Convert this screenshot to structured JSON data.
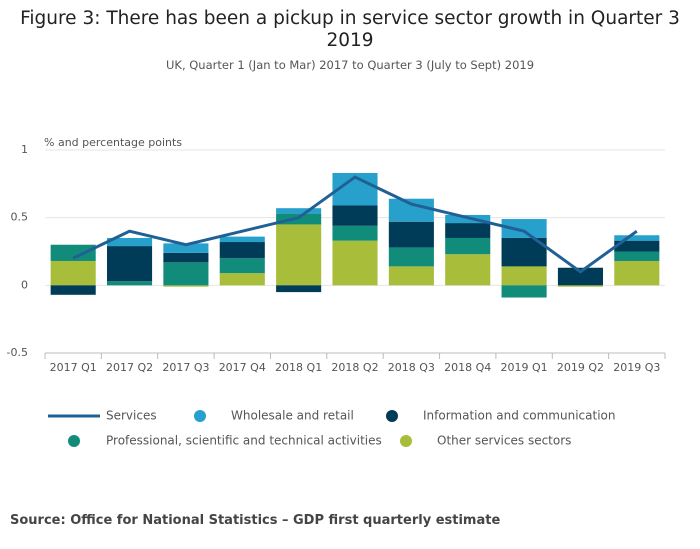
{
  "chart_data": {
    "type": "bar",
    "title": "Figure 3: There has been a pickup in service sector growth in Quarter 3 2019",
    "subtitle": "UK, Quarter 1 (Jan to Mar) 2017 to Quarter 3 (July to Sept) 2019",
    "y_label": "% and percentage points",
    "source": "Source: Office for National Statistics – GDP first quarterly estimate",
    "categories": [
      "2017 Q1",
      "2017 Q2",
      "2017 Q3",
      "2017 Q4",
      "2018 Q1",
      "2018 Q2",
      "2018 Q3",
      "2018 Q4",
      "2019 Q1",
      "2019 Q2",
      "2019 Q3"
    ],
    "ylim": [
      -0.5,
      1
    ],
    "yticks": [
      1,
      0.5,
      0,
      -0.5
    ],
    "grid": true,
    "stacked": true,
    "series": [
      {
        "name": "Services",
        "type": "line",
        "color": "#206095",
        "values": [
          0.2,
          0.4,
          0.3,
          0.4,
          0.5,
          0.8,
          0.6,
          0.5,
          0.4,
          0.1,
          0.4
        ]
      },
      {
        "name": "Wholesale and retail",
        "type": "bar",
        "color": "#27a0cc",
        "values": [
          0,
          0.06,
          0.07,
          0.04,
          0.04,
          0.24,
          0.17,
          0.06,
          0.14,
          0,
          0.04
        ]
      },
      {
        "name": "Information and communication",
        "type": "bar",
        "color": "#003c57",
        "values": [
          -0.07,
          0.26,
          0.07,
          0.12,
          -0.05,
          0.15,
          0.19,
          0.11,
          0.21,
          0.13,
          0.08
        ]
      },
      {
        "name": "Professional, scientific and technical activities",
        "type": "bar",
        "color": "#118c7b",
        "values": [
          0.12,
          0.03,
          0.17,
          0.11,
          0.08,
          0.11,
          0.14,
          0.12,
          -0.09,
          0,
          0.07
        ]
      },
      {
        "name": "Other services sectors",
        "type": "bar",
        "color": "#a8bd3a",
        "values": [
          0.18,
          0,
          -0.01,
          0.09,
          0.45,
          0.33,
          0.14,
          0.23,
          0.14,
          -0.01,
          0.18
        ]
      }
    ]
  }
}
